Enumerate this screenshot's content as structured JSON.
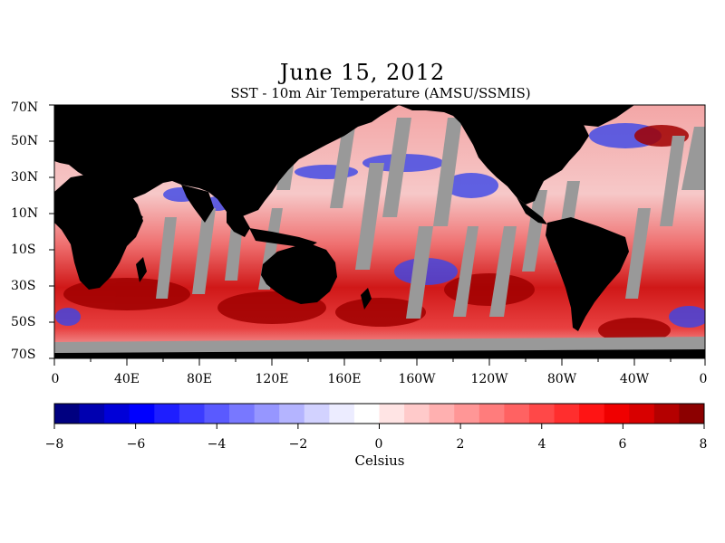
{
  "map": {
    "title": "June 15, 2012",
    "subtitle": "SST - 10m Air Temperature (AMSU/SSMIS)",
    "lat_labels": [
      "70N",
      "50N",
      "30N",
      "10N",
      "10S",
      "30S",
      "50S",
      "70S"
    ],
    "lon_labels": [
      "0",
      "40E",
      "80E",
      "120E",
      "160E",
      "160W",
      "120W",
      "80W",
      "40W",
      "0"
    ],
    "colors": {
      "land": "#000000",
      "no_data": "#999999",
      "ocean_warm": "#e8141e",
      "ocean_cold": "#2030e0"
    }
  },
  "colorbar": {
    "tick_labels": [
      "−8",
      "−6",
      "−4",
      "−2",
      "0",
      "2",
      "4",
      "6",
      "8"
    ],
    "units": "Celsius",
    "colors": [
      "#000080",
      "#0000b0",
      "#0000d8",
      "#0000ff",
      "#1e1eff",
      "#3c3cff",
      "#5a5aff",
      "#7878ff",
      "#9696ff",
      "#b4b4ff",
      "#d2d2ff",
      "#ececff",
      "#ffffff",
      "#ffe4e4",
      "#ffcaca",
      "#ffb0b0",
      "#ff9696",
      "#ff7c7c",
      "#ff6262",
      "#ff4848",
      "#ff2e2e",
      "#ff1414",
      "#f00000",
      "#d80000",
      "#b40000",
      "#8c0000"
    ]
  }
}
